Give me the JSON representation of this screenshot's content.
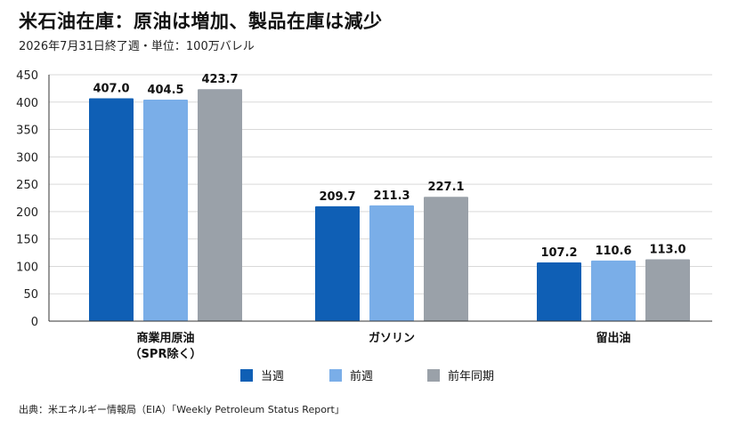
{
  "header": {
    "title": "米石油在庫：原油は増加、製品在庫は減少",
    "subtitle": "2026年7月31日終了週・単位：100万バレル"
  },
  "footer": {
    "source": "出典：米エネルギー情報局（EIA）「Weekly Petroleum Status Report」"
  },
  "colors": {
    "current": "#0f5fb5",
    "previous": "#7aaee8",
    "year_ago": "#9aa1a9",
    "grid": "#d9d9d9",
    "axis": "#333333"
  },
  "chart_data": {
    "type": "bar",
    "categories": [
      {
        "line1": "商業用原油",
        "line2": "（SPR除く）"
      },
      {
        "line1": "ガソリン",
        "line2": ""
      },
      {
        "line1": "留出油",
        "line2": ""
      }
    ],
    "series": [
      {
        "name": "当週",
        "values": [
          407.0,
          209.7,
          107.2
        ],
        "labels": [
          "407.0",
          "209.7",
          "107.2"
        ]
      },
      {
        "name": "前週",
        "values": [
          404.5,
          211.3,
          110.6
        ],
        "labels": [
          "404.5",
          "211.3",
          "110.6"
        ]
      },
      {
        "name": "前年同期",
        "values": [
          423.7,
          227.1,
          113.0
        ],
        "labels": [
          "423.7",
          "227.1",
          "113.0"
        ]
      }
    ],
    "yticks": [
      "0",
      "50",
      "100",
      "150",
      "200",
      "250",
      "300",
      "350",
      "400",
      "450"
    ],
    "ylim": [
      0,
      450
    ],
    "grid": true,
    "legend_position": "bottom-center"
  }
}
